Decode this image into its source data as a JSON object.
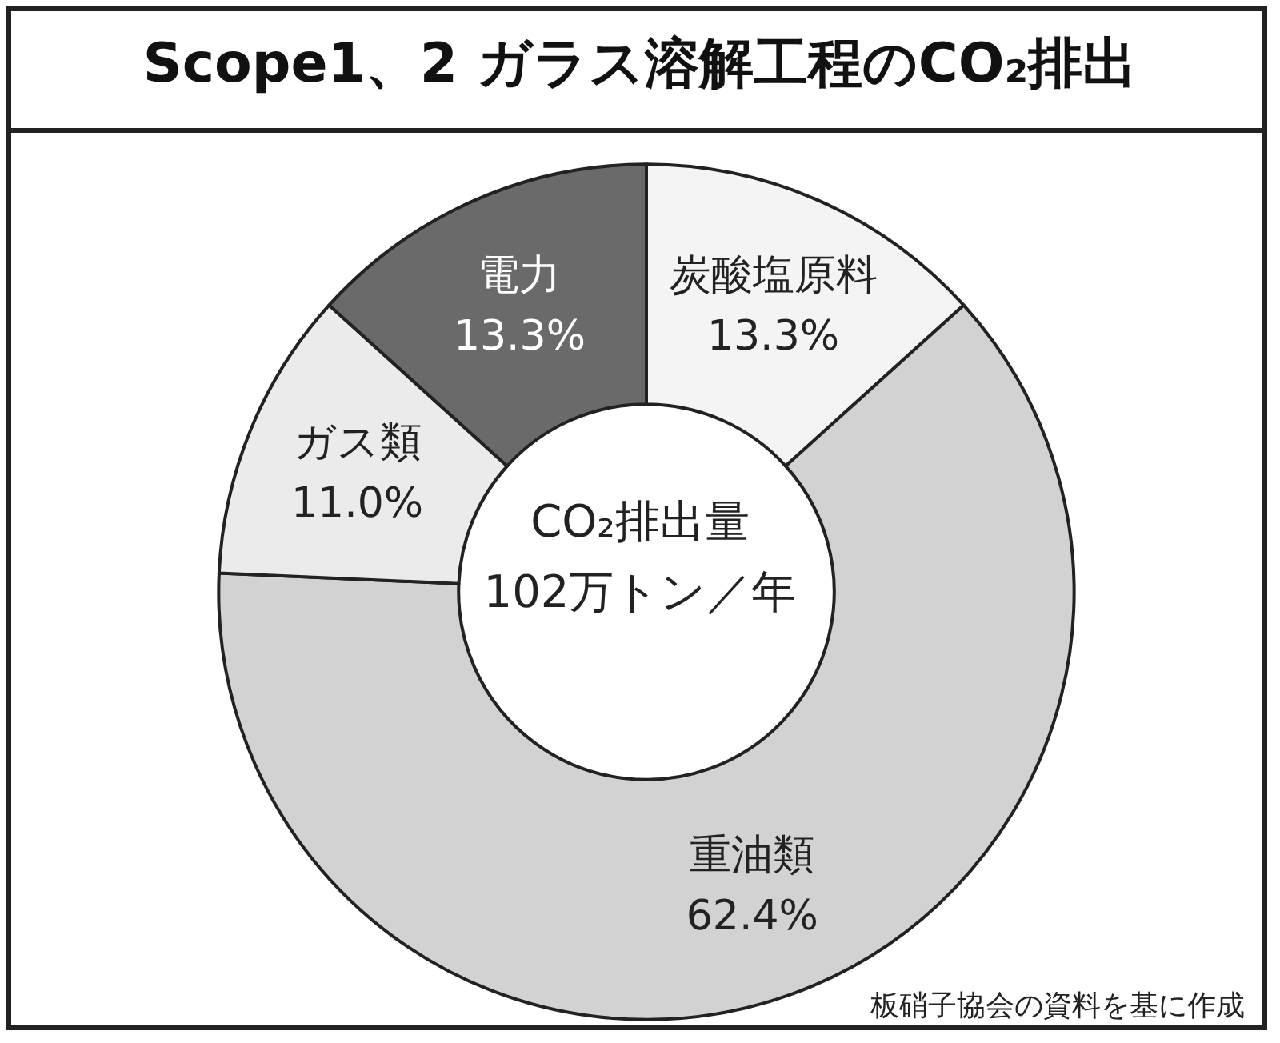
{
  "chart_data": {
    "type": "donut",
    "title": "Scope1、2 ガラス溶解工程のCO₂排出",
    "categories": [
      "炭酸塩原料",
      "重油類",
      "ガス類",
      "電力"
    ],
    "values": [
      13.3,
      62.4,
      11.0,
      13.3
    ],
    "colors": [
      "#f4f4f4",
      "#d2d2d2",
      "#ebebeb",
      "#6a6a6a"
    ],
    "value_labels": [
      "13.3%",
      "62.4%",
      "11.0%",
      "13.3%"
    ],
    "legend": false,
    "annotations": [
      "CO₂排出量",
      "102万トン／年",
      "板硝子協会の資料を基に作成"
    ]
  }
}
